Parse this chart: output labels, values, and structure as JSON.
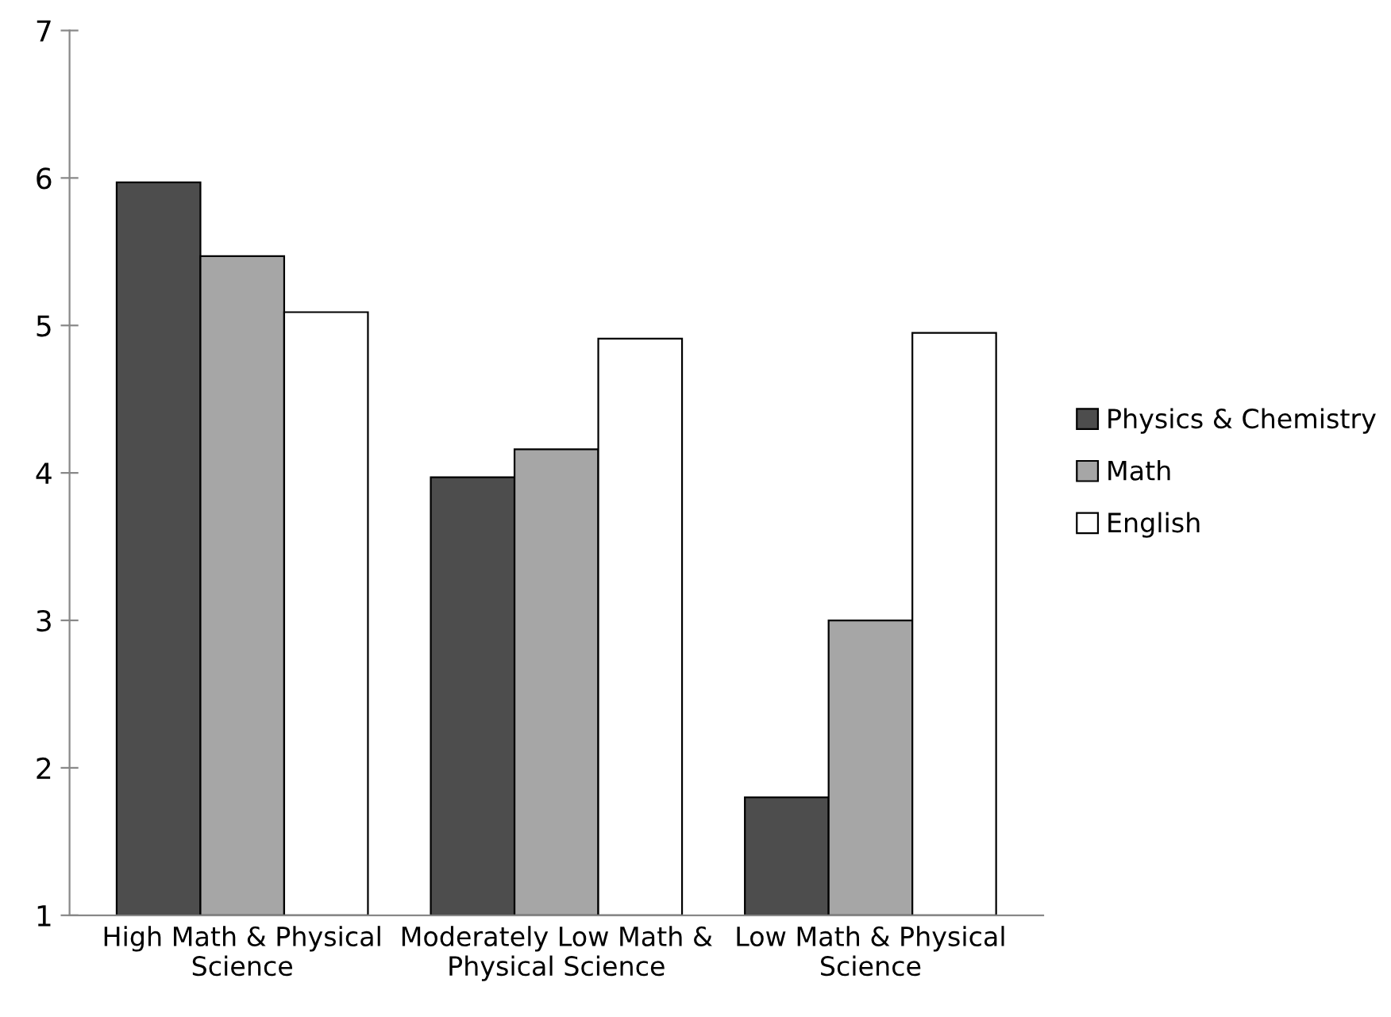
{
  "chart_data": {
    "type": "bar",
    "categories": [
      "High Math & Physical Science",
      "Moderately Low Math & Physical Science",
      "Low Math & Physical Science"
    ],
    "series": [
      {
        "name": "Physics & Chemistry",
        "color": "#4d4d4d",
        "values": [
          5.97,
          3.97,
          1.8
        ]
      },
      {
        "name": "Math",
        "color": "#a6a6a6",
        "values": [
          5.47,
          4.16,
          3.0
        ]
      },
      {
        "name": "English",
        "color": "#ffffff",
        "values": [
          5.09,
          4.91,
          4.95
        ]
      }
    ],
    "ylim": [
      1,
      7
    ],
    "yticks": [
      1,
      2,
      3,
      4,
      5,
      6,
      7
    ],
    "grid": false,
    "legend": "right"
  }
}
